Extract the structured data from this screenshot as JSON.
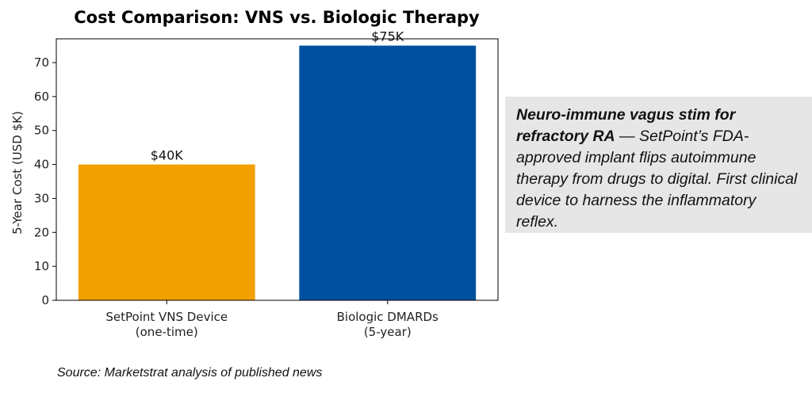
{
  "chart_data": {
    "type": "bar",
    "title": "Cost Comparison: VNS vs. Biologic Therapy",
    "categories": [
      [
        "SetPoint VNS Device",
        "(one-time)"
      ],
      [
        "Biologic DMARDs",
        "(5-year)"
      ]
    ],
    "values": [
      40,
      75
    ],
    "data_labels": [
      "$40K",
      "$75K"
    ],
    "colors": [
      "#f2a000",
      "#0050a0"
    ],
    "xlabel": "",
    "ylabel": "5-Year Cost (USD $K)",
    "ylim": [
      0,
      77
    ],
    "yticks": [
      0,
      10,
      20,
      30,
      40,
      50,
      60,
      70
    ],
    "grid": false
  },
  "callout": {
    "heading": "Neuro-immune vagus stim for refractory RA",
    "body": " — SetPoint’s FDA-approved implant flips autoimmune therapy from drugs to digital. First clinical device to harness the inflammatory reflex."
  },
  "source": "Source: Marketstrat analysis of published news"
}
